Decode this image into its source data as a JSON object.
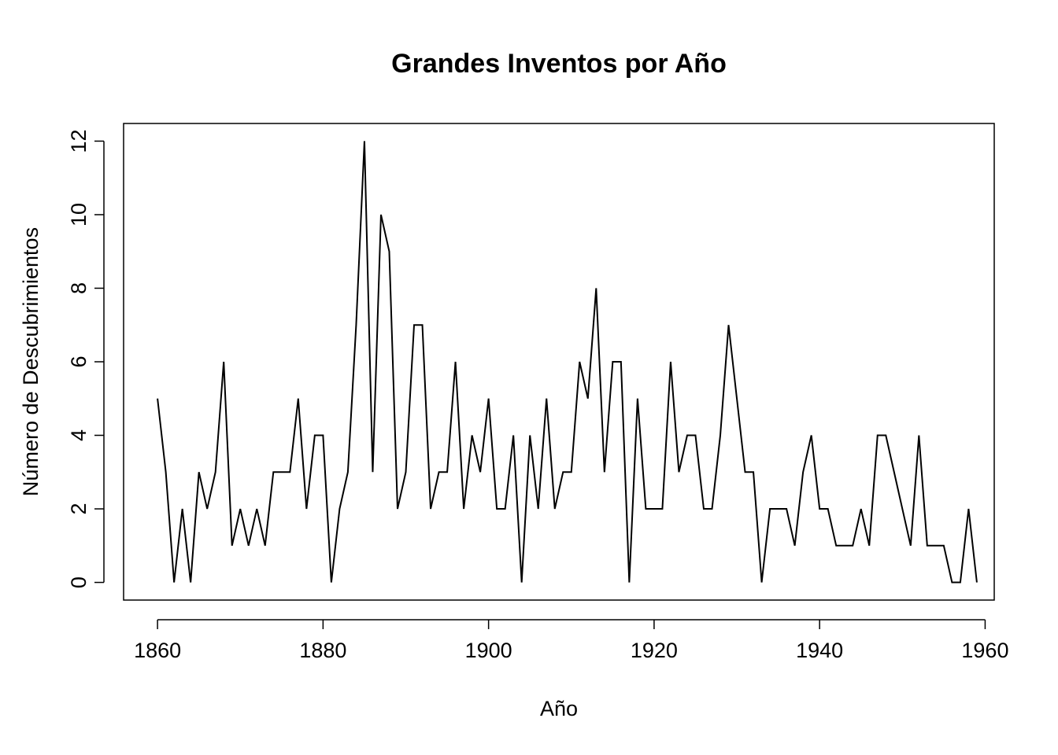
{
  "chart_data": {
    "type": "line",
    "title": "Grandes Inventos por Año",
    "xlabel": "Año",
    "ylabel": "Número de Descubrimientos",
    "xlim": [
      1855.9,
      1961.1
    ],
    "ylim": [
      -0.48,
      12.48
    ],
    "xticks": [
      1860,
      1880,
      1900,
      1920,
      1940,
      1960
    ],
    "yticks": [
      0,
      2,
      4,
      6,
      8,
      10,
      12
    ],
    "grid": false,
    "legend": "none",
    "line_color": "#000000",
    "x": [
      1860,
      1861,
      1862,
      1863,
      1864,
      1865,
      1866,
      1867,
      1868,
      1869,
      1870,
      1871,
      1872,
      1873,
      1874,
      1875,
      1876,
      1877,
      1878,
      1879,
      1880,
      1881,
      1882,
      1883,
      1884,
      1885,
      1886,
      1887,
      1888,
      1889,
      1890,
      1891,
      1892,
      1893,
      1894,
      1895,
      1896,
      1897,
      1898,
      1899,
      1900,
      1901,
      1902,
      1903,
      1904,
      1905,
      1906,
      1907,
      1908,
      1909,
      1910,
      1911,
      1912,
      1913,
      1914,
      1915,
      1916,
      1917,
      1918,
      1919,
      1920,
      1921,
      1922,
      1923,
      1924,
      1925,
      1926,
      1927,
      1928,
      1929,
      1930,
      1931,
      1932,
      1933,
      1934,
      1935,
      1936,
      1937,
      1938,
      1939,
      1940,
      1941,
      1942,
      1943,
      1944,
      1945,
      1946,
      1947,
      1948,
      1949,
      1950,
      1951,
      1952,
      1953,
      1954,
      1955,
      1956,
      1957,
      1958,
      1959
    ],
    "values": [
      5,
      3,
      0,
      2,
      0,
      3,
      2,
      3,
      6,
      1,
      2,
      1,
      2,
      1,
      3,
      3,
      3,
      5,
      2,
      4,
      4,
      0,
      2,
      3,
      7,
      12,
      3,
      10,
      9,
      2,
      3,
      7,
      7,
      2,
      3,
      3,
      6,
      2,
      4,
      3,
      5,
      2,
      2,
      4,
      0,
      4,
      2,
      5,
      2,
      3,
      3,
      6,
      5,
      8,
      3,
      6,
      6,
      0,
      5,
      2,
      2,
      2,
      6,
      3,
      4,
      4,
      2,
      2,
      4,
      7,
      5,
      3,
      3,
      0,
      2,
      2,
      2,
      1,
      3,
      4,
      2,
      2,
      1,
      1,
      1,
      2,
      1,
      4,
      4,
      3,
      2,
      1,
      4,
      1,
      1,
      1,
      0,
      0,
      2,
      0
    ]
  }
}
